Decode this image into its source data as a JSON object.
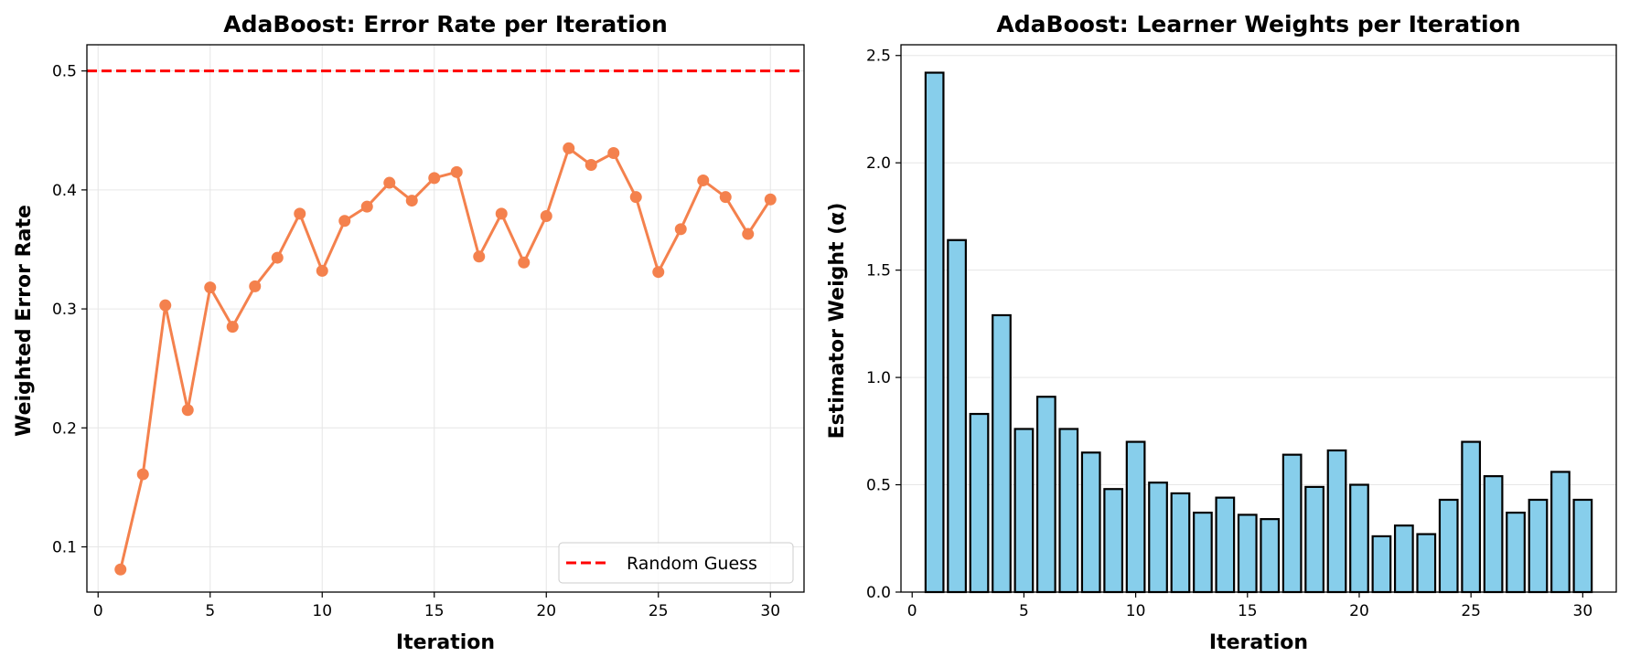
{
  "chart_data": [
    {
      "type": "line",
      "title": "AdaBoost: Error Rate per Iteration",
      "xlabel": "Iteration",
      "ylabel": "Weighted Error Rate",
      "xlim": [
        -0.5,
        31.5
      ],
      "ylim": [
        0.062,
        0.522
      ],
      "xticks": [
        0,
        5,
        10,
        15,
        20,
        25,
        30
      ],
      "yticks": [
        0.1,
        0.2,
        0.3,
        0.4,
        0.5
      ],
      "xtick_labels": [
        "0",
        "5",
        "10",
        "15",
        "20",
        "25",
        "30"
      ],
      "ytick_labels": [
        "0.1",
        "0.2",
        "0.3",
        "0.4",
        "0.5"
      ],
      "grid": true,
      "legend_position": "bottom-right",
      "series": [
        {
          "color": "#f4814d",
          "marker": "circle",
          "x": [
            1,
            2,
            3,
            4,
            5,
            6,
            7,
            8,
            9,
            10,
            11,
            12,
            13,
            14,
            15,
            16,
            17,
            18,
            19,
            20,
            21,
            22,
            23,
            24,
            25,
            26,
            27,
            28,
            29,
            30
          ],
          "values": [
            0.081,
            0.161,
            0.303,
            0.215,
            0.318,
            0.285,
            0.319,
            0.343,
            0.38,
            0.332,
            0.374,
            0.386,
            0.406,
            0.391,
            0.41,
            0.415,
            0.344,
            0.38,
            0.339,
            0.378,
            0.435,
            0.421,
            0.431,
            0.394,
            0.331,
            0.367,
            0.408,
            0.394,
            0.363,
            0.392
          ]
        }
      ],
      "reference_line": {
        "name": "Random Guess",
        "y": 0.5,
        "color": "#ff0000",
        "style": "dashed"
      }
    },
    {
      "type": "bar",
      "title": "AdaBoost: Learner Weights per Iteration",
      "xlabel": "Iteration",
      "ylabel": "Estimator Weight (α)",
      "xlim": [
        -0.5,
        31.5
      ],
      "ylim": [
        0,
        2.55
      ],
      "xticks": [
        0,
        5,
        10,
        15,
        20,
        25,
        30
      ],
      "yticks": [
        0.0,
        0.5,
        1.0,
        1.5,
        2.0,
        2.5
      ],
      "xtick_labels": [
        "0",
        "5",
        "10",
        "15",
        "20",
        "25",
        "30"
      ],
      "ytick_labels": [
        "0.0",
        "0.5",
        "1.0",
        "1.5",
        "2.0",
        "2.5"
      ],
      "grid": true,
      "bar_color": "#87ceeb",
      "edge_color": "#000000",
      "categories": [
        1,
        2,
        3,
        4,
        5,
        6,
        7,
        8,
        9,
        10,
        11,
        12,
        13,
        14,
        15,
        16,
        17,
        18,
        19,
        20,
        21,
        22,
        23,
        24,
        25,
        26,
        27,
        28,
        29,
        30
      ],
      "values": [
        2.42,
        1.64,
        0.83,
        1.29,
        0.76,
        0.91,
        0.76,
        0.65,
        0.48,
        0.7,
        0.51,
        0.46,
        0.37,
        0.44,
        0.36,
        0.34,
        0.64,
        0.49,
        0.66,
        0.5,
        0.26,
        0.31,
        0.27,
        0.43,
        0.7,
        0.54,
        0.37,
        0.43,
        0.56,
        0.43
      ]
    }
  ]
}
